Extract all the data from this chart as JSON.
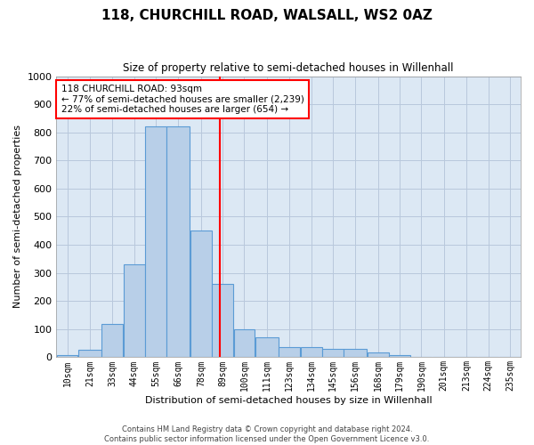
{
  "title": "118, CHURCHILL ROAD, WALSALL, WS2 0AZ",
  "subtitle": "Size of property relative to semi-detached houses in Willenhall",
  "xlabel": "Distribution of semi-detached houses by size in Willenhall",
  "ylabel": "Number of semi-detached properties",
  "footer1": "Contains HM Land Registry data © Crown copyright and database right 2024.",
  "footer2": "Contains public sector information licensed under the Open Government Licence v3.0.",
  "annotation_title": "118 CHURCHILL ROAD: 93sqm",
  "annotation_line1": "← 77% of semi-detached houses are smaller (2,239)",
  "annotation_line2": "22% of semi-detached houses are larger (654) →",
  "bar_labels": [
    "10sqm",
    "21sqm",
    "33sqm",
    "44sqm",
    "55sqm",
    "66sqm",
    "78sqm",
    "89sqm",
    "100sqm",
    "111sqm",
    "123sqm",
    "134sqm",
    "145sqm",
    "156sqm",
    "168sqm",
    "179sqm",
    "190sqm",
    "201sqm",
    "213sqm",
    "224sqm",
    "235sqm"
  ],
  "bar_values": [
    8,
    28,
    120,
    330,
    820,
    820,
    450,
    260,
    100,
    72,
    35,
    35,
    30,
    30,
    18,
    8,
    0,
    0,
    0,
    0,
    0
  ],
  "bar_edges": [
    10,
    21,
    33,
    44,
    55,
    66,
    78,
    89,
    100,
    111,
    123,
    134,
    145,
    156,
    168,
    179,
    190,
    201,
    213,
    224,
    235,
    246
  ],
  "bar_color": "#b8cfe8",
  "bar_edge_color": "#5b9bd5",
  "vline_x": 93,
  "vline_color": "red",
  "ylim": [
    0,
    1000
  ],
  "ytick_step": 100,
  "grid_color": "#b8c8dc",
  "bg_color": "#dce8f4",
  "annotation_box_color": "white",
  "annotation_box_edge": "red",
  "fig_width": 6.0,
  "fig_height": 5.0,
  "dpi": 100
}
